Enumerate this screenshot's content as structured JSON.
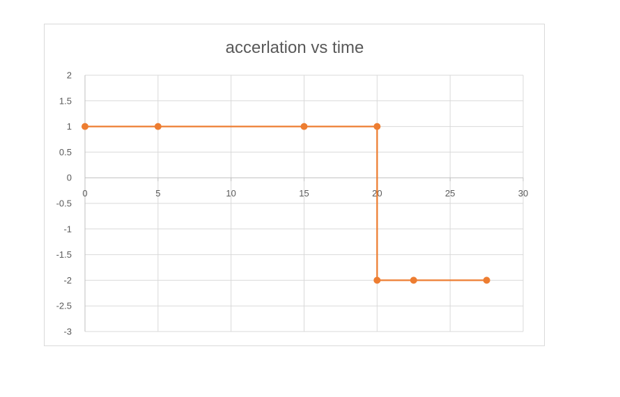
{
  "chart_data": {
    "type": "scatter",
    "title": "accerlation vs time",
    "xlabel": "",
    "ylabel": "",
    "xlim": [
      0,
      30
    ],
    "ylim": [
      -3,
      2
    ],
    "xticks": [
      0,
      5,
      10,
      15,
      20,
      25,
      30
    ],
    "yticks": [
      2,
      1.5,
      1,
      0.5,
      0,
      -0.5,
      -1,
      -1.5,
      -2,
      -2.5,
      -3
    ],
    "grid": true,
    "legend": "none",
    "series": [
      {
        "color": "#ed7d31",
        "markers": true,
        "lines": true,
        "points": [
          {
            "x": 0,
            "y": 1
          },
          {
            "x": 5,
            "y": 1
          },
          {
            "x": 15,
            "y": 1
          },
          {
            "x": 20,
            "y": 1
          },
          {
            "x": 20,
            "y": -2
          },
          {
            "x": 22.5,
            "y": -2
          },
          {
            "x": 27.5,
            "y": -2
          }
        ]
      }
    ]
  }
}
